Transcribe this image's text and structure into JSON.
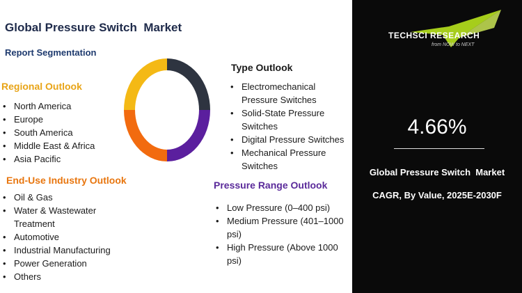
{
  "title": "Global Pressure Switch  Market",
  "subtitle": "Report Segmentation",
  "regional": {
    "heading": "Regional Outlook",
    "items": [
      "North America",
      "Europe",
      "South America",
      "Middle East & Africa",
      "Asia Pacific"
    ]
  },
  "enduse": {
    "heading": "End-Use Industry Outlook",
    "items": [
      "Oil & Gas",
      "Water & Wastewater Treatment",
      "Automotive",
      "Industrial Manufacturing",
      "Power Generation",
      "Others"
    ]
  },
  "type": {
    "heading": "Type Outlook",
    "items": [
      "Electromechanical Pressure Switches",
      "Solid-State Pressure Switches",
      "Digital Pressure Switches",
      "Mechanical Pressure Switches"
    ]
  },
  "pressure": {
    "heading": "Pressure Range Outlook",
    "items": [
      "Low Pressure (0–400 psi)",
      "Medium Pressure (401–1000 psi)",
      "High Pressure (Above 1000 psi)"
    ]
  },
  "donut_colors": [
    "#2e3440",
    "#5b1f9e",
    "#f26b0f",
    "#f4b915"
  ],
  "brand": {
    "name": "TECHSCI RESEARCH",
    "tagline": "from NOW to NEXT",
    "accent": "#b7e21d"
  },
  "stats": {
    "cagr_value": "4.66%",
    "market_label": "Global Pressure Switch  Market",
    "cagr_label": "CAGR, By Value, 2025E-2030F"
  }
}
